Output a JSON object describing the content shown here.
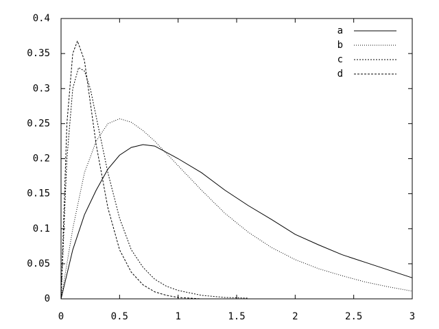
{
  "chart_data": {
    "type": "line",
    "xlim": [
      0,
      3
    ],
    "xticks": [
      0,
      0.5,
      1,
      1.5,
      2,
      2.5,
      3
    ],
    "ylim": [
      0,
      0.4
    ],
    "yticks": [
      0,
      0.05,
      0.1,
      0.15,
      0.2,
      0.25,
      0.3,
      0.35,
      0.4
    ],
    "legend": "top-right",
    "series": [
      {
        "name": "a",
        "color": "#000000",
        "dash": "none",
        "x": [
          0,
          0.1,
          0.2,
          0.3,
          0.4,
          0.5,
          0.6,
          0.7,
          0.8,
          1.0,
          1.2,
          1.4,
          1.6,
          1.8,
          2.0,
          2.2,
          2.4,
          2.6,
          2.8,
          3.0
        ],
        "values": [
          0,
          0.07,
          0.12,
          0.155,
          0.185,
          0.205,
          0.216,
          0.22,
          0.218,
          0.2,
          0.18,
          0.155,
          0.133,
          0.113,
          0.092,
          0.077,
          0.063,
          0.052,
          0.041,
          0.03
        ]
      },
      {
        "name": "b",
        "color": "#000000",
        "dash": "1 2",
        "x": [
          0,
          0.1,
          0.2,
          0.3,
          0.4,
          0.5,
          0.6,
          0.7,
          0.8,
          1.0,
          1.2,
          1.4,
          1.6,
          1.8,
          2.0,
          2.2,
          2.4,
          2.6,
          2.8,
          3.0
        ],
        "values": [
          0,
          0.1,
          0.18,
          0.225,
          0.25,
          0.257,
          0.252,
          0.24,
          0.225,
          0.19,
          0.155,
          0.122,
          0.095,
          0.073,
          0.056,
          0.043,
          0.033,
          0.024,
          0.017,
          0.011
        ]
      },
      {
        "name": "c",
        "color": "#000000",
        "dash": "2 2",
        "x": [
          0,
          0.05,
          0.1,
          0.15,
          0.2,
          0.25,
          0.3,
          0.4,
          0.5,
          0.6,
          0.7,
          0.8,
          0.9,
          1.0,
          1.2,
          1.4,
          1.6
        ],
        "values": [
          0,
          0.2,
          0.3,
          0.33,
          0.325,
          0.3,
          0.26,
          0.18,
          0.115,
          0.07,
          0.045,
          0.028,
          0.018,
          0.012,
          0.005,
          0.002,
          0.001
        ]
      },
      {
        "name": "d",
        "color": "#000000",
        "dash": "3 2",
        "x": [
          0,
          0.05,
          0.1,
          0.14,
          0.2,
          0.25,
          0.3,
          0.4,
          0.5,
          0.6,
          0.7,
          0.8,
          0.9,
          1.0,
          1.1,
          1.2
        ],
        "values": [
          0,
          0.25,
          0.35,
          0.368,
          0.34,
          0.28,
          0.22,
          0.13,
          0.07,
          0.038,
          0.02,
          0.01,
          0.005,
          0.002,
          0.001,
          0
        ]
      }
    ]
  }
}
